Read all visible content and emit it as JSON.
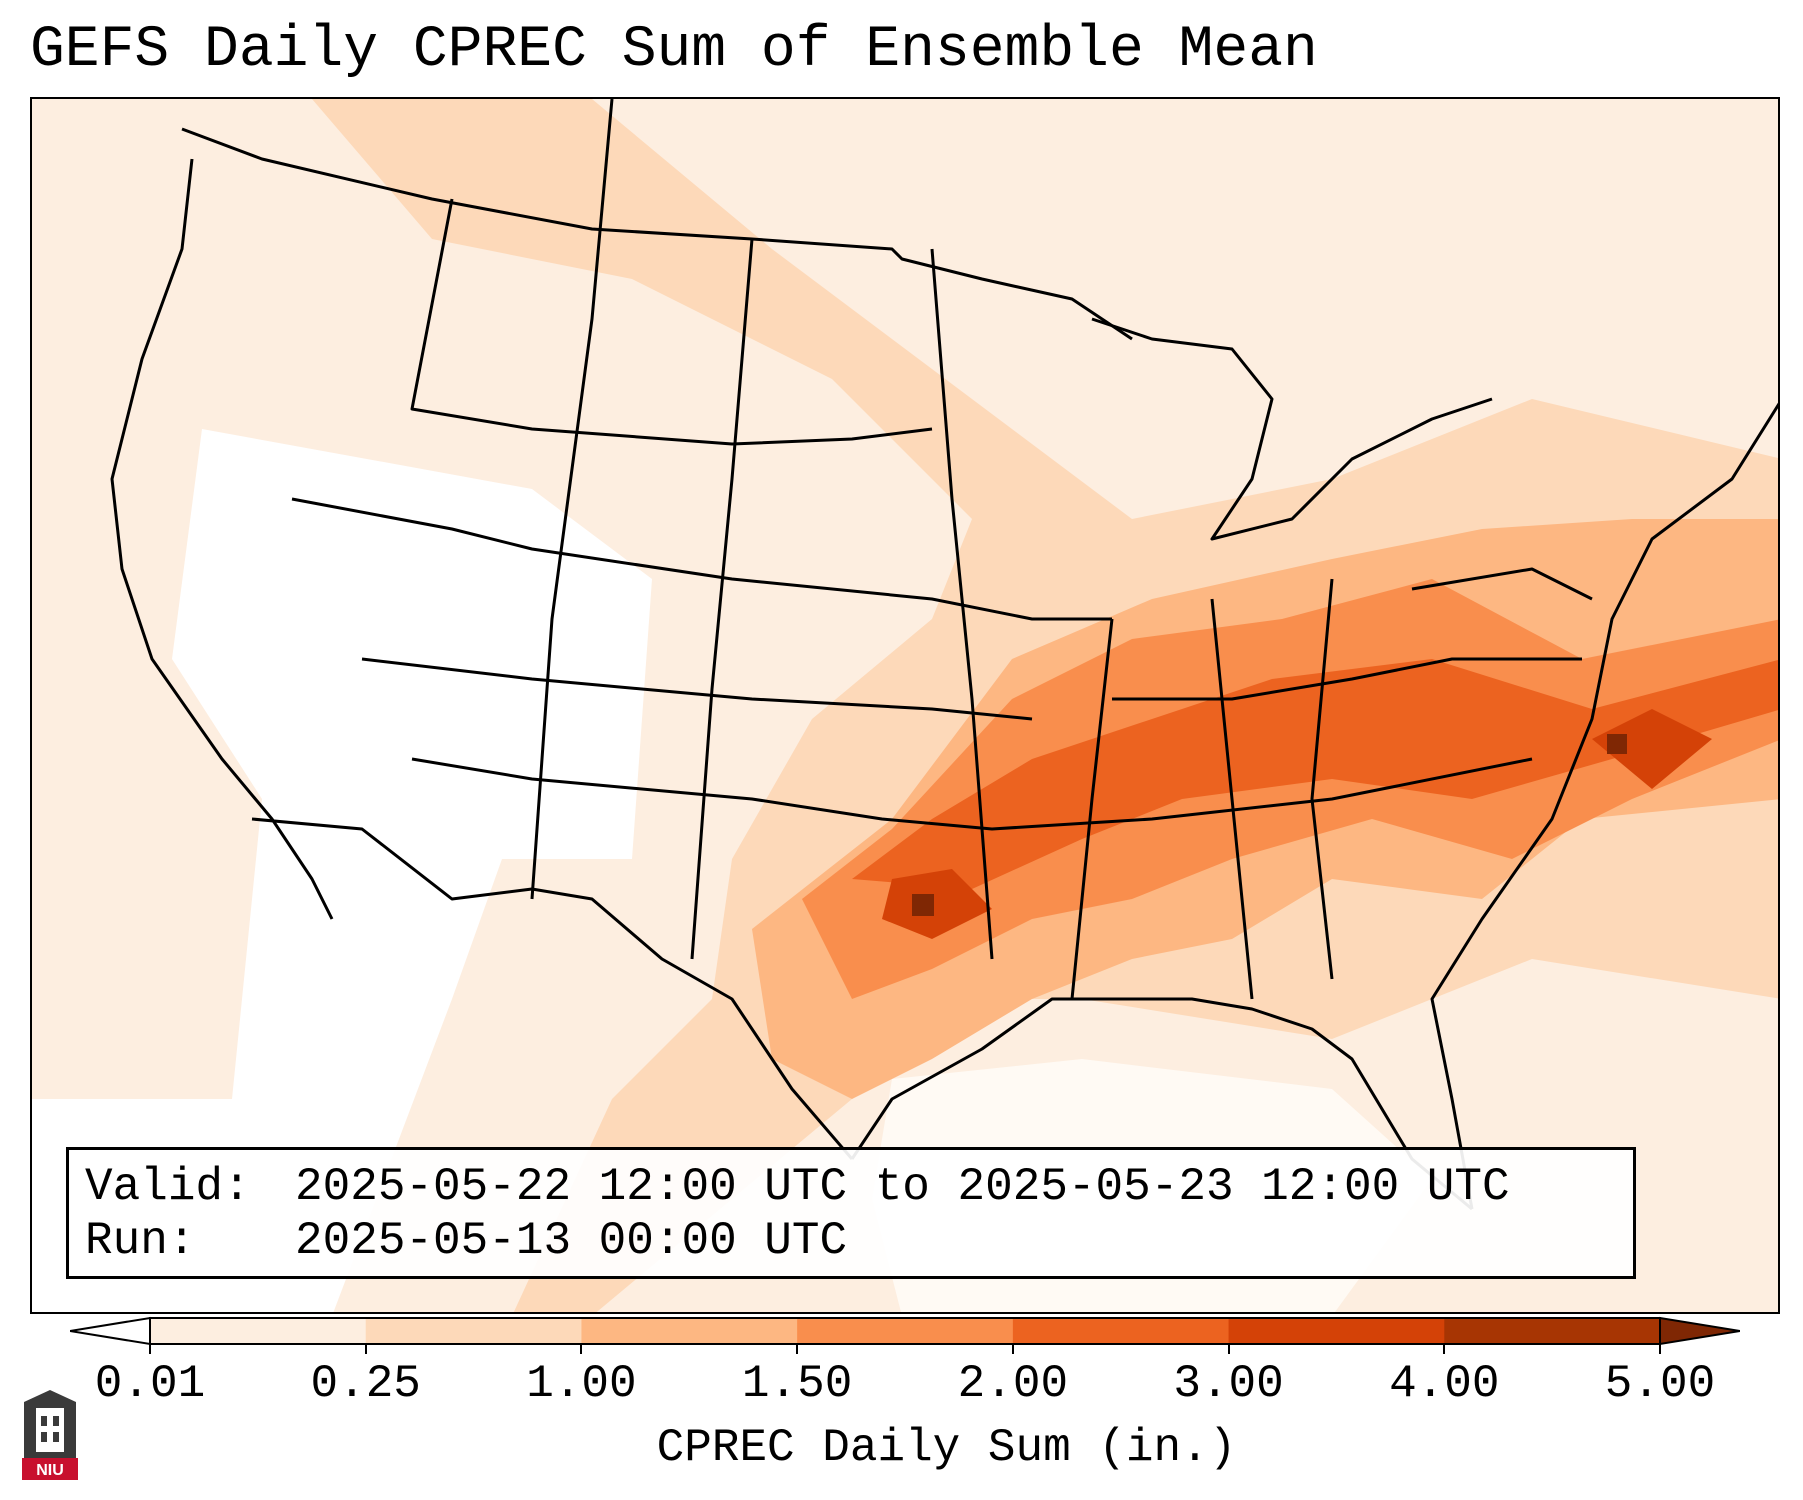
{
  "title": "GEFS Daily CPREC Sum of Ensemble Mean",
  "info": {
    "valid_key": "Valid:",
    "valid_value": "2025-05-22 12:00 UTC to 2025-05-23 12:00 UTC",
    "run_key": "Run:",
    "run_value": "2025-05-13 00:00 UTC"
  },
  "colorbar": {
    "label": "CPREC Daily Sum (in.)",
    "ticks": [
      "0.01",
      "0.25",
      "1.00",
      "1.50",
      "2.00",
      "3.00",
      "4.00",
      "5.00"
    ],
    "colors": [
      "#fdeee0",
      "#fdd9b9",
      "#fdb782",
      "#f98e4d",
      "#ec6320",
      "#d44207",
      "#a73503"
    ],
    "under_color": "#ffffff",
    "over_color": "#7f2704"
  },
  "logo": {
    "text": "NIU",
    "name": "niu-logo"
  },
  "colors": {
    "level1": "#fdeee0",
    "level2": "#fdd9b9",
    "level3": "#fdb782",
    "level4": "#f98e4d",
    "level5": "#ec6320",
    "level6": "#d44207",
    "level7": "#7f2704",
    "outline": "#000000"
  }
}
